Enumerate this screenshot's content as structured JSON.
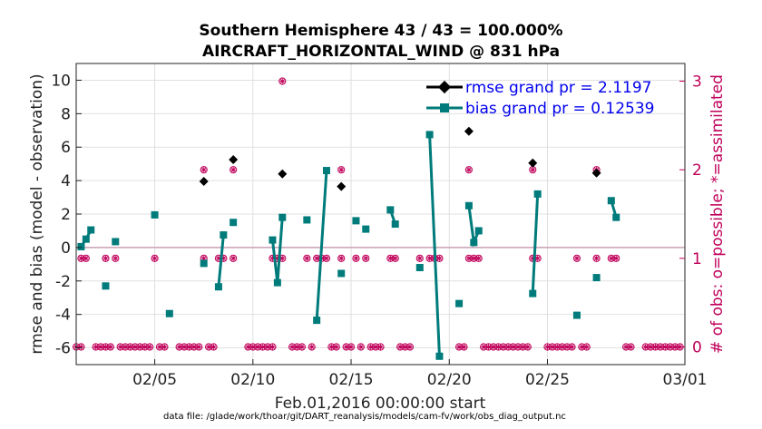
{
  "chart_data": {
    "type": "line",
    "title_line1": "Southern Hemisphere 43 / 43 = 100.000%",
    "title_line2": "AIRCRAFT_HORIZONTAL_WIND @ 831 hPa",
    "xlabel": "Feb.01,2016 00:00:00 start",
    "ylabel": "rmse and bias (model - observation)",
    "y2label": "# of obs: o=possible; *=assimilated",
    "footnote": "data file: /glade/work/thoar/git/DART_reanalysis/models/cam-fv/work/obs_diag_output.nc",
    "xlim": [
      1,
      32
    ],
    "ylim": [
      -7,
      11
    ],
    "y2lim": [
      -0.2,
      3.2
    ],
    "grid": true,
    "legend_position": "top-right",
    "x_ticks": [
      5,
      10,
      15,
      20,
      25,
      32
    ],
    "x_tick_labels": [
      "02/05",
      "02/10",
      "02/15",
      "02/20",
      "02/25",
      "03/01"
    ],
    "y_ticks": [
      -6,
      -4,
      -2,
      0,
      2,
      4,
      6,
      8,
      10
    ],
    "y_tick_labels": [
      "-6",
      "-4",
      "-2",
      "0",
      "2",
      "4",
      "6",
      "8",
      "10"
    ],
    "y2_ticks": [
      0,
      1,
      2,
      3
    ],
    "y2_tick_labels": [
      "0",
      "1",
      "2",
      "3"
    ],
    "colors": {
      "rmse": "#000000",
      "bias": "#007b7b",
      "obs": "#c0005a",
      "zero_line": "#c8a0b4",
      "grid": "#e0e0e0"
    },
    "series": [
      {
        "name": "rmse grand pr = 2.1197",
        "points": [
          [
            7.5,
            3.95
          ],
          [
            9.0,
            5.25
          ],
          [
            11.5,
            4.4
          ],
          [
            14.5,
            3.65
          ],
          [
            21.0,
            6.95
          ],
          [
            24.25,
            5.05
          ],
          [
            27.5,
            4.45
          ]
        ]
      },
      {
        "name": "bias grand pr = 0.12539",
        "segments": [
          [
            [
              1.25,
              0.05
            ],
            [
              1.5,
              0.5
            ],
            [
              1.75,
              1.05
            ]
          ],
          [
            [
              2.5,
              -2.3
            ]
          ],
          [
            [
              3.0,
              0.35
            ]
          ],
          [
            [
              5.0,
              1.95
            ]
          ],
          [
            [
              5.75,
              -3.95
            ]
          ],
          [
            [
              7.5,
              -0.95
            ]
          ],
          [
            [
              8.25,
              -2.35
            ],
            [
              8.5,
              0.75
            ]
          ],
          [
            [
              9.0,
              1.5
            ]
          ],
          [
            [
              11.0,
              0.45
            ],
            [
              11.25,
              -2.1
            ],
            [
              11.5,
              1.8
            ]
          ],
          [
            [
              12.75,
              1.65
            ]
          ],
          [
            [
              13.25,
              -4.35
            ],
            [
              13.75,
              4.6
            ]
          ],
          [
            [
              14.5,
              -1.55
            ]
          ],
          [
            [
              15.25,
              1.6
            ]
          ],
          [
            [
              15.75,
              1.1
            ]
          ],
          [
            [
              17.0,
              2.25
            ],
            [
              17.25,
              1.4
            ]
          ],
          [
            [
              18.5,
              -1.2
            ]
          ],
          [
            [
              19.0,
              6.75
            ],
            [
              19.5,
              -6.5
            ]
          ],
          [
            [
              20.5,
              -3.35
            ]
          ],
          [
            [
              21.0,
              2.5
            ],
            [
              21.25,
              0.3
            ],
            [
              21.5,
              1.0
            ]
          ],
          [
            [
              24.25,
              -2.75
            ],
            [
              24.5,
              3.2
            ]
          ],
          [
            [
              26.5,
              -4.05
            ]
          ],
          [
            [
              27.5,
              -1.8
            ]
          ],
          [
            [
              28.25,
              2.8
            ],
            [
              28.5,
              1.8
            ]
          ]
        ]
      },
      {
        "name": "obs possible",
        "x_at_0": [
          1.0,
          1.25,
          2.0,
          2.25,
          2.5,
          2.75,
          3.25,
          3.5,
          3.75,
          4.0,
          4.25,
          4.5,
          4.75,
          5.25,
          5.5,
          6.25,
          6.5,
          6.75,
          7.0,
          7.25,
          7.75,
          8.0,
          9.75,
          10.0,
          10.25,
          10.5,
          10.75,
          11.0,
          12.0,
          12.25,
          12.5,
          13.0,
          14.0,
          14.25,
          14.75,
          15.0,
          15.5,
          16.0,
          16.25,
          16.5,
          17.5,
          17.75,
          18.0,
          20.5,
          20.75,
          21.75,
          22.0,
          22.25,
          22.5,
          22.75,
          23.0,
          23.25,
          23.5,
          23.75,
          24.0,
          25.0,
          25.25,
          25.5,
          25.75,
          26.0,
          26.25,
          26.75,
          27.0,
          29.0,
          29.25,
          30.0,
          30.25,
          30.5,
          30.75,
          31.0,
          31.25,
          31.5,
          31.75
        ],
        "x_at_1": [
          1.25,
          1.5,
          2.5,
          3.0,
          5.0,
          7.5,
          8.25,
          8.5,
          9.0,
          11.0,
          11.25,
          11.5,
          12.75,
          13.25,
          13.5,
          13.75,
          14.5,
          15.25,
          15.75,
          17.0,
          17.25,
          18.5,
          19.0,
          19.25,
          19.5,
          21.0,
          21.25,
          21.5,
          24.25,
          24.5,
          26.5,
          27.5,
          28.25,
          28.5
        ],
        "x_at_2": [
          7.5,
          9.0,
          14.5,
          21.0,
          24.25,
          27.5
        ],
        "x_at_3": [
          11.5
        ]
      }
    ]
  }
}
